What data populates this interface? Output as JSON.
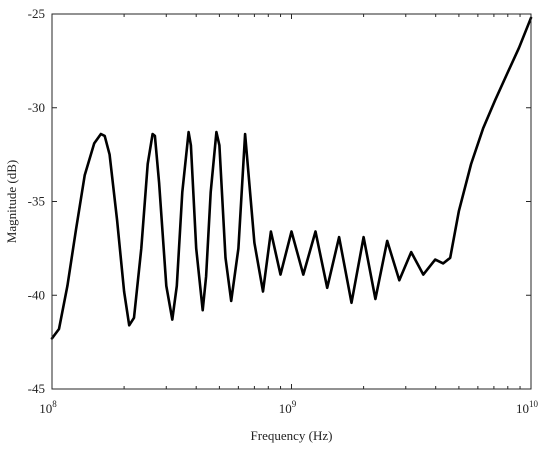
{
  "chart_data": {
    "type": "line",
    "xlabel": "Frequency (Hz)",
    "ylabel": "Magnitude (dB)",
    "x_scale": "log",
    "xlim": [
      100000000,
      10000000000
    ],
    "ylim": [
      -45,
      -25
    ],
    "x_ticks": [
      {
        "value": 100000000,
        "base": "10",
        "exp": "8"
      },
      {
        "value": 1000000000,
        "base": "10",
        "exp": "9"
      },
      {
        "value": 10000000000,
        "base": "10",
        "exp": "10"
      }
    ],
    "y_ticks": [
      -45,
      -40,
      -35,
      -30,
      -25
    ],
    "grid": false,
    "line_color": "#000000",
    "series": [
      {
        "x": [
          100000000,
          107000000,
          116000000,
          126000000,
          137000000,
          150000000,
          160000000,
          166000000,
          174000000,
          187000000,
          200000000,
          210000000,
          220000000,
          236000000,
          251000000,
          263000000,
          269000000,
          280000000,
          300000000,
          318000000,
          332000000,
          350000000,
          372000000,
          380000000,
          400000000,
          426000000,
          440000000,
          460000000,
          486000000,
          500000000,
          530000000,
          560000000,
          600000000,
          640000000,
          700000000,
          760000000,
          820000000,
          900000000,
          1000000000,
          1120000000,
          1260000000,
          1410000000,
          1580000000,
          1780000000,
          2000000000,
          2240000000,
          2510000000,
          2820000000,
          3160000000,
          3550000000,
          3980000000,
          4300000000,
          4600000000,
          5000000000,
          5620000000,
          6310000000,
          7080000000,
          7940000000,
          8910000000,
          10000000000
        ],
        "y": [
          -42.3,
          -41.8,
          -39.5,
          -36.5,
          -33.6,
          -31.9,
          -31.4,
          -31.5,
          -32.5,
          -36.0,
          -39.8,
          -41.6,
          -41.2,
          -37.5,
          -33.0,
          -31.4,
          -31.5,
          -34.0,
          -39.5,
          -41.3,
          -39.5,
          -34.5,
          -31.3,
          -32.0,
          -37.5,
          -40.8,
          -39.0,
          -34.5,
          -31.3,
          -32.0,
          -38.0,
          -40.3,
          -37.5,
          -31.4,
          -37.2,
          -39.8,
          -36.6,
          -38.9,
          -36.6,
          -38.9,
          -36.6,
          -39.6,
          -36.9,
          -40.4,
          -36.9,
          -40.2,
          -37.1,
          -39.2,
          -37.7,
          -38.9,
          -38.1,
          -38.3,
          -38.0,
          -35.5,
          -33.0,
          -31.1,
          -29.6,
          -28.2,
          -26.8,
          -25.2
        ]
      }
    ]
  }
}
